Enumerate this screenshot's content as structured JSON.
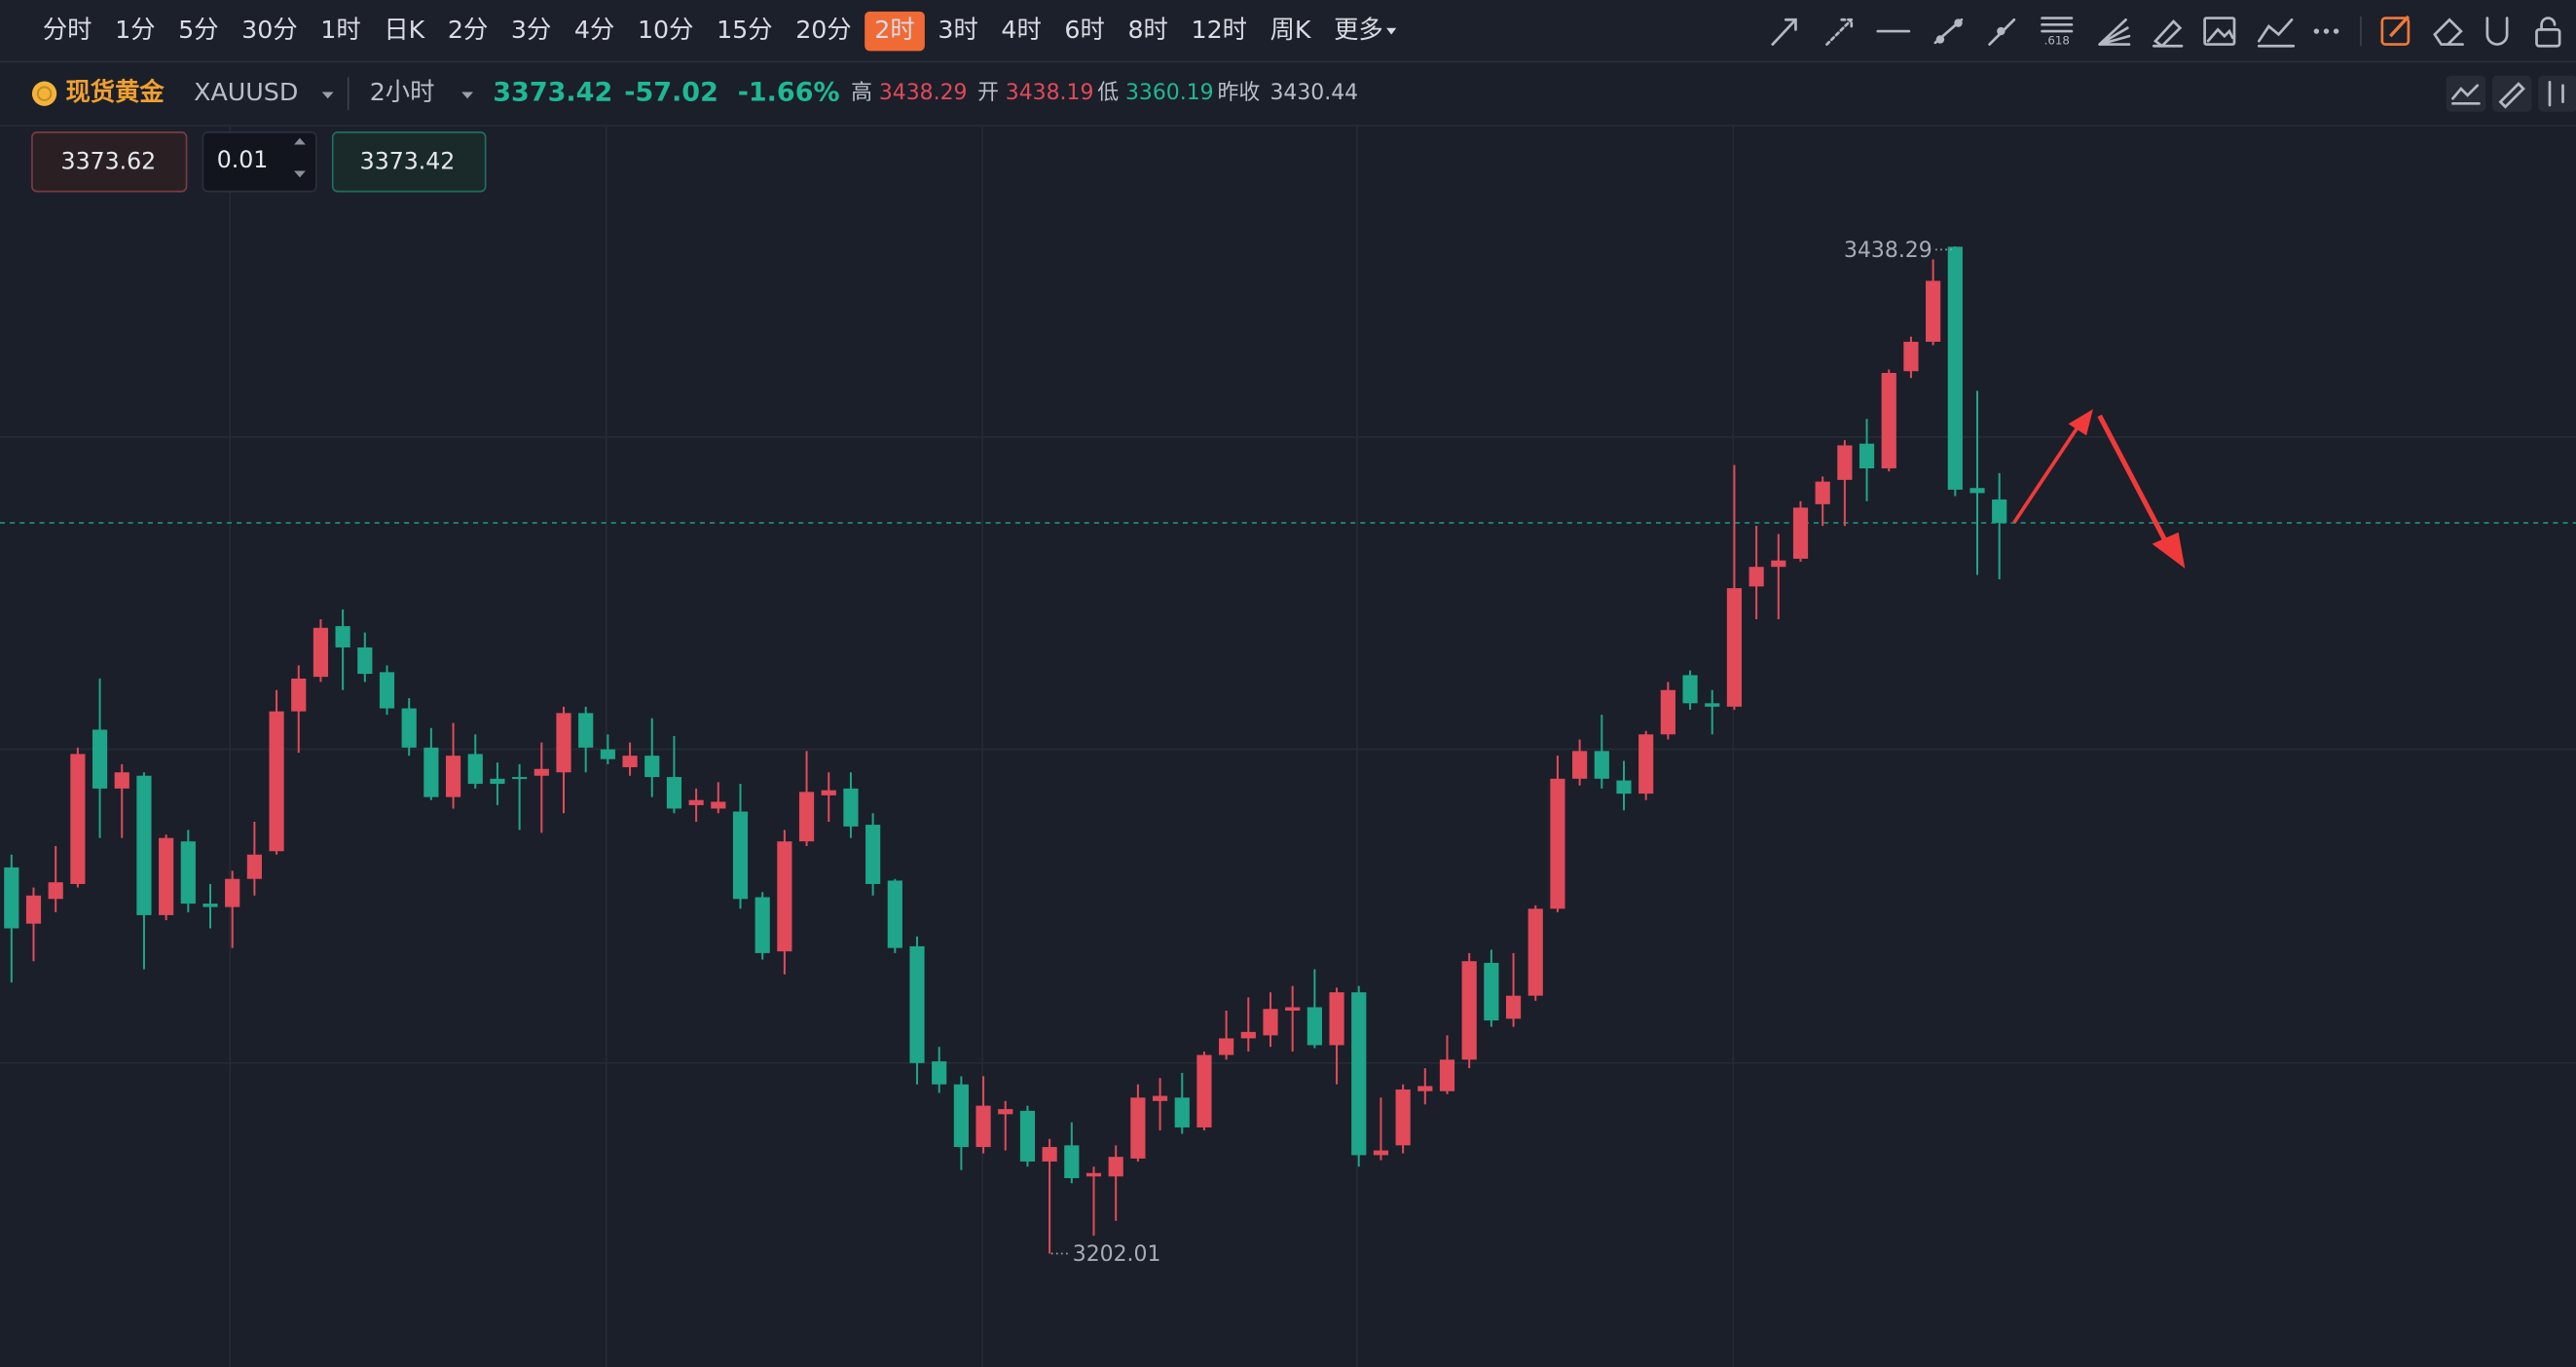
{
  "toolbar": {
    "timeframes": [
      "分时",
      "1分",
      "5分",
      "30分",
      "1时",
      "日K",
      "2分",
      "3分",
      "4分",
      "10分",
      "15分",
      "20分",
      "2时",
      "3时",
      "4时",
      "6时",
      "8时",
      "12时",
      "周K",
      "更多"
    ],
    "selected": 12
  },
  "quote": {
    "name": "现货黄金",
    "symbol": "XAUUSD",
    "period": "2小时",
    "price": 3373.42,
    "change": -57.02,
    "change_pct": {
      "value": -1.66,
      "label": "-1.66%"
    },
    "high_label": "高",
    "high": 3438.29,
    "open_label": "开",
    "open": 3438.19,
    "low_label": "低",
    "low": 3360.19,
    "prev_close_label": "昨收",
    "prev_close": 3430.44
  },
  "order": {
    "ask": 3373.62,
    "quantity": 0.01,
    "bid": 3373.42
  },
  "chart_data": {
    "type": "candlestick",
    "up_color": "#e04a59",
    "down_color": "#1fa58a",
    "ylim": [
      3175.4,
      3466.4
    ],
    "max_marker": 3438.29,
    "min_marker": 3202.01,
    "open": [
      3292.6,
      3279.4,
      3285.2,
      3288.7,
      3324.9,
      3311.1,
      3314.1,
      3281.4,
      3298.7,
      3284.1,
      3283.3,
      3289.9,
      3296.4,
      3329.2,
      3337.3,
      3349.2,
      3344.2,
      3338.4,
      3329.9,
      3320.7,
      3309.1,
      3319.2,
      3313.4,
      3313.8,
      3314.1,
      3314.9,
      3328.8,
      3320.3,
      3316.1,
      3318.8,
      3313.8,
      3307.2,
      3306.4,
      3305.7,
      3285.6,
      3272.9,
      3298.7,
      3309.5,
      3311.1,
      3302.6,
      3289.5,
      3274.1,
      3247.1,
      3241.7,
      3227.0,
      3234.7,
      3235.5,
      3223.6,
      3227.4,
      3220.1,
      3220.1,
      3224.3,
      3237.8,
      3238.6,
      3231.6,
      3248.6,
      3252.5,
      3253.2,
      3259.0,
      3259.8,
      3250.9,
      3263.3,
      3225.1,
      3227.4,
      3240.1,
      3240.1,
      3247.5,
      3270.2,
      3257.1,
      3262.5,
      3282.9,
      3313.4,
      3319.9,
      3313.0,
      3309.9,
      3323.8,
      3337.7,
      3331.1,
      3330.3,
      3358.5,
      3363.1,
      3365.0,
      3377.8,
      3383.5,
      3392.0,
      3386.2,
      3409.0,
      3415.9,
      3438.19,
      3381.6,
      3378.9
    ],
    "high": [
      3295.6,
      3287.9,
      3297.6,
      3320.7,
      3336.9,
      3316.8,
      3314.9,
      3300.3,
      3301.4,
      3288.7,
      3291.8,
      3303.3,
      3334.2,
      3340.0,
      3350.8,
      3353.1,
      3347.7,
      3340.0,
      3332.3,
      3325.3,
      3326.5,
      3323.8,
      3317.2,
      3316.8,
      3321.9,
      3330.3,
      3330.3,
      3323.8,
      3321.9,
      3327.6,
      3323.4,
      3311.1,
      3312.6,
      3312.2,
      3286.8,
      3301.4,
      3319.9,
      3314.9,
      3314.9,
      3305.3,
      3289.9,
      3276.4,
      3250.5,
      3243.6,
      3243.6,
      3237.8,
      3236.7,
      3228.9,
      3232.8,
      3222.4,
      3227.4,
      3241.7,
      3243.2,
      3244.4,
      3249.4,
      3259.0,
      3262.1,
      3263.3,
      3264.8,
      3268.7,
      3264.4,
      3264.8,
      3238.6,
      3241.7,
      3245.5,
      3253.2,
      3272.5,
      3273.3,
      3272.5,
      3283.7,
      3318.8,
      3322.6,
      3328.4,
      3317.6,
      3324.6,
      3336.1,
      3338.8,
      3334.2,
      3387.0,
      3372.7,
      3370.8,
      3378.5,
      3384.3,
      3392.8,
      3397.8,
      3409.4,
      3417.1,
      3435.2,
      3438.29,
      3404.4,
      3385.1
    ],
    "low": [
      3265.6,
      3270.6,
      3282.1,
      3287.9,
      3299.5,
      3299.5,
      3268.7,
      3280.2,
      3282.1,
      3278.3,
      3273.7,
      3286.0,
      3295.6,
      3319.5,
      3336.1,
      3334.2,
      3336.1,
      3328.4,
      3318.8,
      3308.4,
      3306.4,
      3311.1,
      3307.2,
      3301.4,
      3300.7,
      3305.3,
      3314.9,
      3316.8,
      3314.1,
      3309.1,
      3305.3,
      3303.3,
      3305.3,
      3282.9,
      3271.0,
      3267.5,
      3297.6,
      3303.3,
      3299.5,
      3286.0,
      3272.5,
      3241.7,
      3239.7,
      3221.6,
      3225.5,
      3226.2,
      3222.4,
      3202.01,
      3218.5,
      3206.2,
      3209.7,
      3223.6,
      3230.9,
      3230.1,
      3230.9,
      3247.5,
      3249.4,
      3250.5,
      3249.4,
      3250.2,
      3241.7,
      3222.4,
      3223.9,
      3225.5,
      3237.0,
      3239.4,
      3245.5,
      3255.2,
      3255.2,
      3261.3,
      3282.1,
      3311.8,
      3311.1,
      3306.0,
      3308.4,
      3322.6,
      3329.6,
      3323.8,
      3329.6,
      3350.8,
      3350.8,
      3364.3,
      3372.7,
      3372.7,
      3378.5,
      3385.5,
      3407.4,
      3415.1,
      3379.7,
      3361.2,
      3360.19
    ],
    "close": [
      3278.3,
      3286.0,
      3289.1,
      3319.2,
      3311.1,
      3314.9,
      3281.4,
      3299.5,
      3284.1,
      3283.3,
      3289.9,
      3295.6,
      3329.2,
      3336.9,
      3348.8,
      3344.2,
      3338.0,
      3329.9,
      3320.7,
      3309.1,
      3318.8,
      3312.2,
      3312.2,
      3313.4,
      3315.7,
      3328.8,
      3320.7,
      3318.0,
      3318.8,
      3313.8,
      3306.4,
      3308.4,
      3308.0,
      3285.2,
      3272.5,
      3298.7,
      3310.3,
      3310.7,
      3302.2,
      3288.7,
      3273.7,
      3246.7,
      3241.7,
      3227.0,
      3236.7,
      3235.9,
      3223.6,
      3227.0,
      3219.7,
      3220.9,
      3224.7,
      3238.6,
      3239.0,
      3231.6,
      3248.6,
      3252.5,
      3254.0,
      3259.4,
      3259.8,
      3250.9,
      3263.3,
      3225.1,
      3226.2,
      3240.5,
      3241.3,
      3247.5,
      3270.6,
      3256.7,
      3262.5,
      3282.9,
      3313.4,
      3319.9,
      3313.4,
      3309.9,
      3323.8,
      3334.2,
      3331.1,
      3330.3,
      3358.1,
      3363.1,
      3364.6,
      3377.0,
      3383.1,
      3391.6,
      3386.2,
      3408.6,
      3415.9,
      3430.2,
      3381.2,
      3380.4,
      3373.42
    ]
  }
}
